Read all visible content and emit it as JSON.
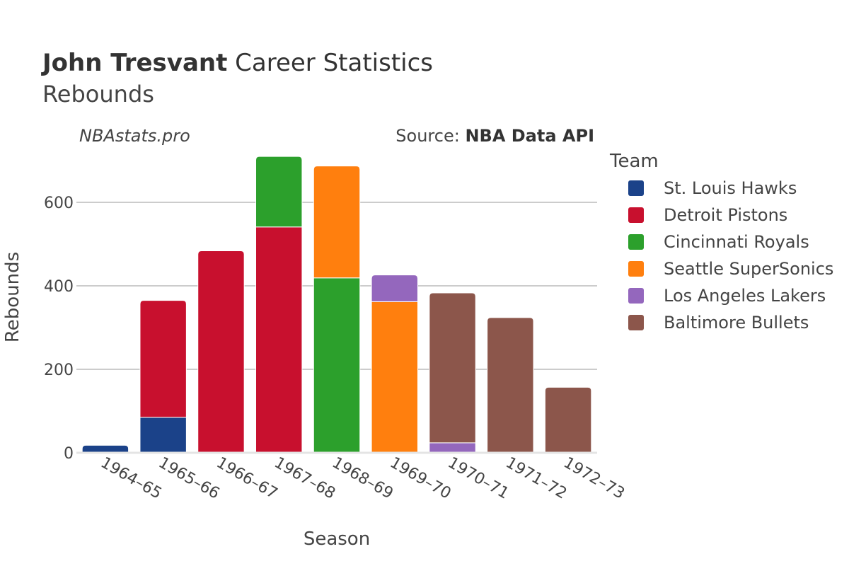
{
  "header": {
    "title_bold": "John Tresvant",
    "title_rest": " Career Statistics",
    "subtitle": "Rebounds",
    "brand": "NBAstats.pro",
    "source_label": "Source: ",
    "source_value": "NBA Data API"
  },
  "legend": {
    "title": "Team",
    "items": [
      {
        "name": "St. Louis Hawks",
        "color": "#1b4289"
      },
      {
        "name": "Detroit Pistons",
        "color": "#c8102e"
      },
      {
        "name": "Cincinnati Royals",
        "color": "#2ca02c"
      },
      {
        "name": "Seattle SuperSonics",
        "color": "#ff7f0e"
      },
      {
        "name": "Los Angeles Lakers",
        "color": "#9467bd"
      },
      {
        "name": "Baltimore Bullets",
        "color": "#8c564b"
      }
    ]
  },
  "chart_data": {
    "type": "bar",
    "stacked": true,
    "xlabel": "Season",
    "ylabel": "Rebounds",
    "ylim": [
      0,
      720
    ],
    "yticks": [
      0,
      200,
      400,
      600
    ],
    "grid": true,
    "legend_position": "right",
    "categories": [
      "1964–65",
      "1965–66",
      "1966–67",
      "1967–68",
      "1968–69",
      "1969–70",
      "1970–71",
      "1971–72",
      "1972–73"
    ],
    "series": [
      {
        "name": "St. Louis Hawks",
        "color": "#1b4289",
        "values": [
          18,
          85,
          0,
          0,
          0,
          0,
          0,
          0,
          0
        ]
      },
      {
        "name": "Detroit Pistons",
        "color": "#c8102e",
        "values": [
          0,
          280,
          484,
          541,
          0,
          0,
          0,
          0,
          0
        ]
      },
      {
        "name": "Cincinnati Royals",
        "color": "#2ca02c",
        "values": [
          0,
          0,
          0,
          169,
          419,
          0,
          0,
          0,
          0
        ]
      },
      {
        "name": "Seattle SuperSonics",
        "color": "#ff7f0e",
        "values": [
          0,
          0,
          0,
          0,
          268,
          362,
          0,
          0,
          0
        ]
      },
      {
        "name": "Los Angeles Lakers",
        "color": "#9467bd",
        "values": [
          0,
          0,
          0,
          0,
          0,
          64,
          24,
          0,
          0
        ]
      },
      {
        "name": "Baltimore Bullets",
        "color": "#8c564b",
        "values": [
          0,
          0,
          0,
          0,
          0,
          0,
          359,
          324,
          157
        ]
      }
    ]
  }
}
